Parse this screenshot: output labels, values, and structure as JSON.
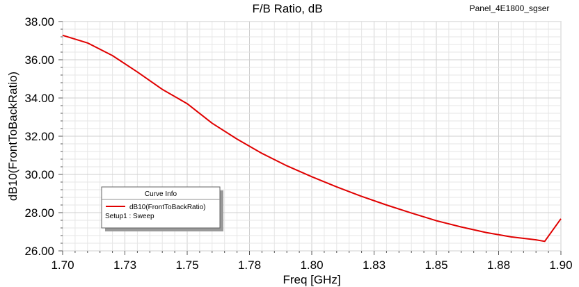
{
  "chart_data": {
    "type": "line",
    "title": "F/B Ratio, dB",
    "design_name": "Panel_4E1800_sgser",
    "xlabel": "Freq [GHz]",
    "ylabel": "dB10(FrontToBackRatio)",
    "xlim": [
      1.7,
      1.9
    ],
    "ylim": [
      26.0,
      38.0
    ],
    "x_tick_values": [
      1.7,
      1.725,
      1.75,
      1.775,
      1.8,
      1.825,
      1.85,
      1.875,
      1.9
    ],
    "x_tick_labels": [
      "1.70",
      "1.73",
      "1.75",
      "1.78",
      "1.80",
      "1.83",
      "1.85",
      "1.88",
      "1.90"
    ],
    "y_tick_values": [
      26,
      28,
      30,
      32,
      34,
      36,
      38
    ],
    "y_tick_labels": [
      "26.00",
      "28.00",
      "30.00",
      "32.00",
      "34.00",
      "36.00",
      "38.00"
    ],
    "grid": true,
    "legend": {
      "title": "Curve Info",
      "placement": "bottom-left",
      "entries": [
        {
          "name": "dB10(FrontToBackRatio)",
          "color": "#e00000"
        }
      ],
      "subtext": "Setup1 : Sweep"
    },
    "series": [
      {
        "name": "dB10(FrontToBackRatio)",
        "color": "#e00000",
        "x": [
          1.7,
          1.71,
          1.72,
          1.73,
          1.74,
          1.75,
          1.76,
          1.77,
          1.78,
          1.79,
          1.8,
          1.81,
          1.82,
          1.83,
          1.84,
          1.85,
          1.86,
          1.87,
          1.88,
          1.89,
          1.8935,
          1.9
        ],
        "values": [
          37.28,
          36.88,
          36.22,
          35.36,
          34.45,
          33.7,
          32.68,
          31.85,
          31.1,
          30.45,
          29.88,
          29.35,
          28.85,
          28.4,
          27.98,
          27.58,
          27.25,
          26.96,
          26.73,
          26.58,
          26.5,
          27.68
        ]
      }
    ]
  }
}
